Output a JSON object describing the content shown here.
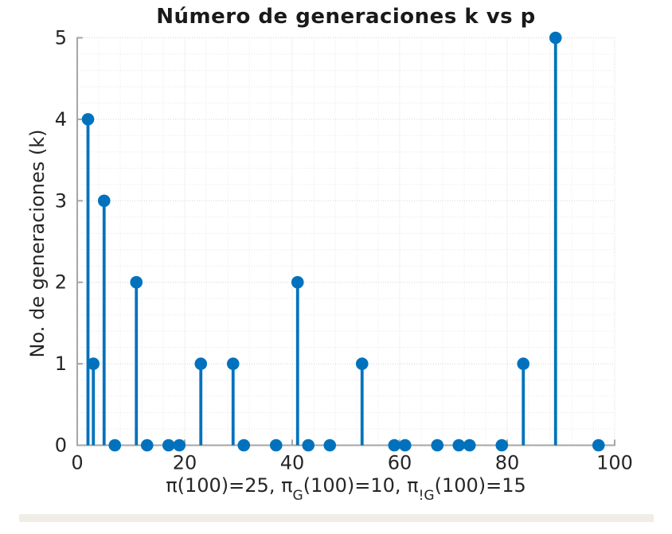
{
  "window": {
    "background": "#ffffff"
  },
  "chart_data": {
    "type": "stem",
    "title": "Número de generaciones k vs p",
    "ylabel": "No. de generaciones (k)",
    "xlabel_parts": {
      "p1": "π(100)=25,  π",
      "sub1": "G",
      "p2": "(100)=10,  π",
      "sub2": "!G",
      "p3": "(100)=15"
    },
    "x": [
      2,
      3,
      5,
      7,
      11,
      13,
      17,
      19,
      23,
      29,
      31,
      37,
      41,
      43,
      47,
      53,
      59,
      61,
      67,
      71,
      73,
      79,
      83,
      89,
      97
    ],
    "y": [
      4,
      1,
      3,
      0,
      2,
      0,
      0,
      0,
      1,
      1,
      0,
      0,
      2,
      0,
      0,
      1,
      0,
      0,
      0,
      0,
      0,
      0,
      1,
      5,
      0
    ],
    "xlim": [
      0,
      100
    ],
    "ylim": [
      0,
      5
    ],
    "xticks": [
      "0",
      "20",
      "40",
      "60",
      "80",
      "100"
    ],
    "yticks": [
      "0",
      "1",
      "2",
      "3",
      "4",
      "5"
    ],
    "x_minor_step": 4,
    "y_minor_step": 0.2,
    "grid": "on",
    "minor_grid": "on",
    "legend": "none",
    "colors": {
      "stem": "#0072BD",
      "axis": "#a6a6a6",
      "major_grid": "#d4d4d4",
      "minor_grid": "#e7e7e7",
      "tick_label": "#262626",
      "title": "#1a1a1a"
    }
  }
}
